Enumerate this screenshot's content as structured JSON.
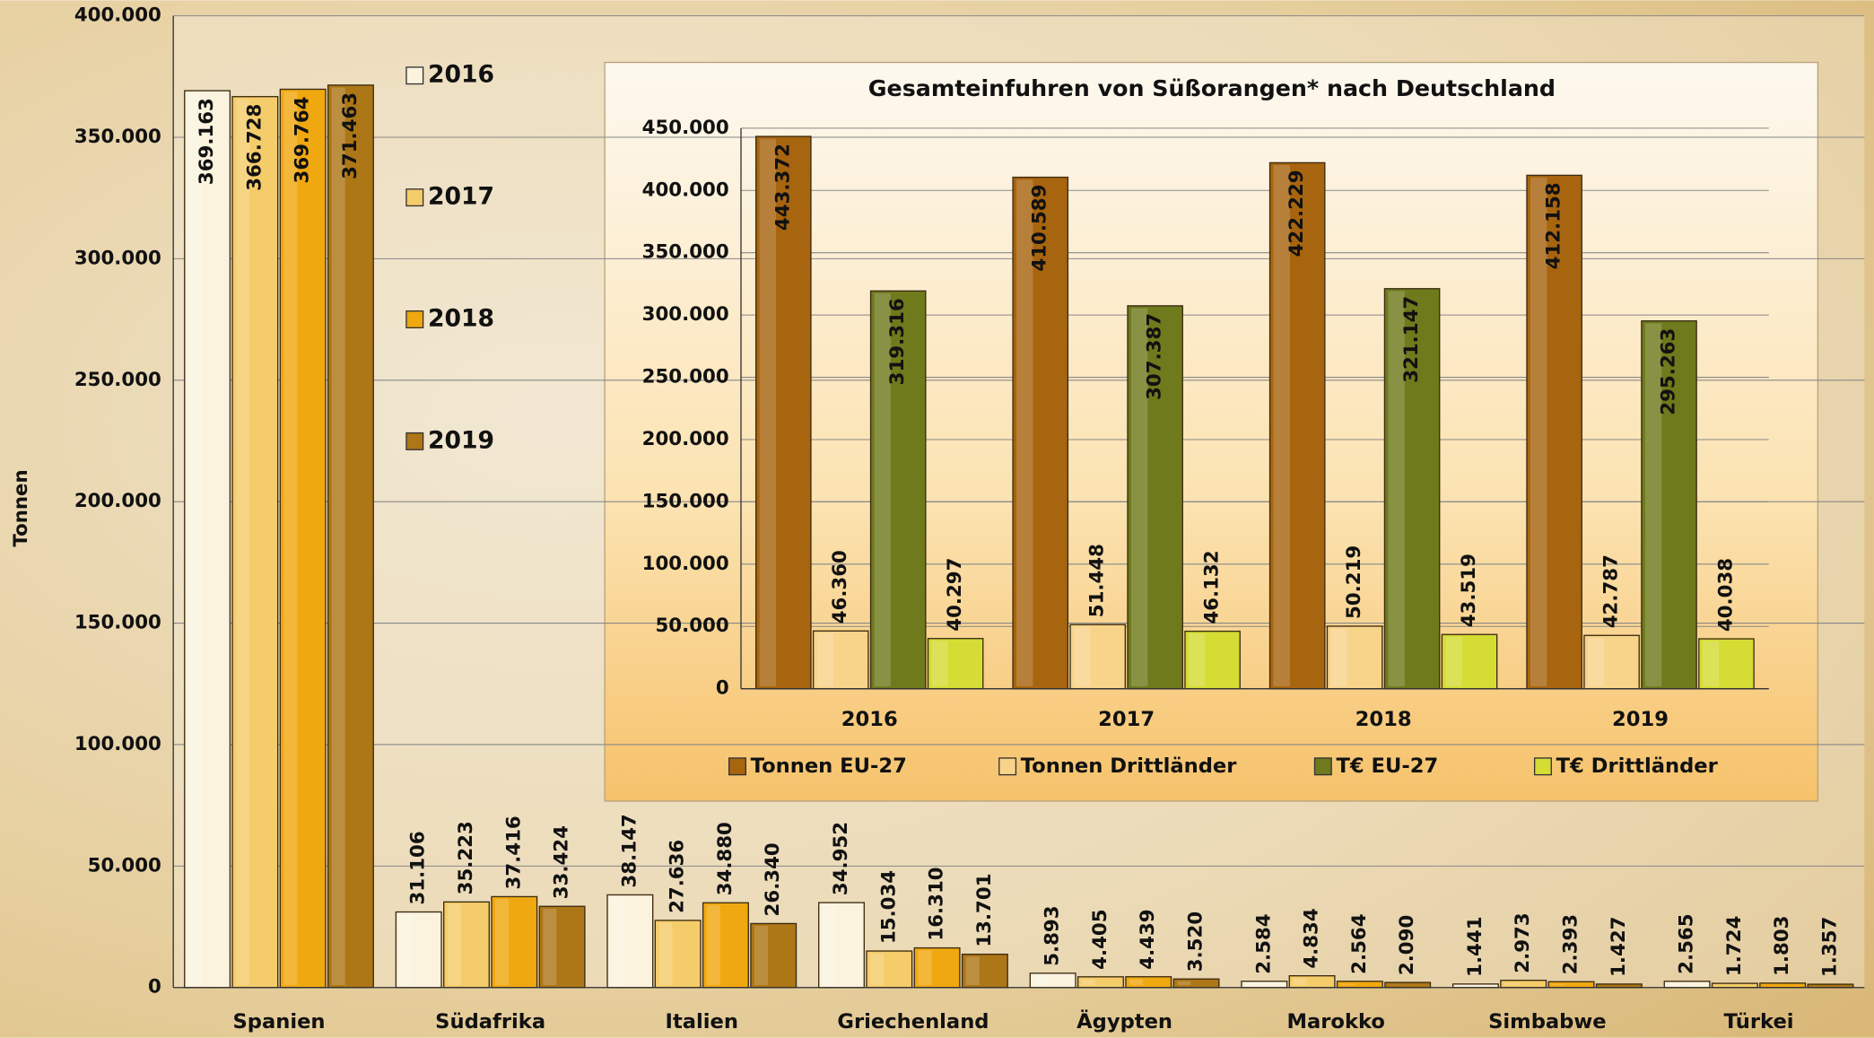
{
  "chart_data": [
    {
      "type": "bar",
      "y_label": "Tonnen",
      "categories": [
        "Spanien",
        "Südafrika",
        "Italien",
        "Griechenland",
        "Ägypten",
        "Marokko",
        "Simbabwe",
        "Türkei"
      ],
      "series": [
        {
          "name": "2016",
          "color": "#fbf3de",
          "values": [
            369163,
            31106,
            38147,
            34952,
            5893,
            2584,
            1441,
            2565
          ],
          "value_labels": [
            "369.163",
            "31.106",
            "38.147",
            "34.952",
            "5.893",
            "2.584",
            "1.441",
            "2.565"
          ]
        },
        {
          "name": "2017",
          "color": "#f5cc6a",
          "values": [
            366728,
            35223,
            27636,
            15034,
            4405,
            4834,
            2973,
            1724
          ],
          "value_labels": [
            "366.728",
            "35.223",
            "27.636",
            "15.034",
            "4.405",
            "4.834",
            "2.973",
            "1.724"
          ]
        },
        {
          "name": "2018",
          "color": "#f0a810",
          "values": [
            369764,
            37416,
            34880,
            16310,
            4439,
            2564,
            2393,
            1803
          ],
          "value_labels": [
            "369.764",
            "37.416",
            "34.880",
            "16.310",
            "4.439",
            "2.564",
            "2.393",
            "1.803"
          ]
        },
        {
          "name": "2019",
          "color": "#ad7616",
          "values": [
            371463,
            33424,
            26340,
            13701,
            3520,
            2090,
            1427,
            1357
          ],
          "value_labels": [
            "371.463",
            "33.424",
            "26.340",
            "13.701",
            "3.520",
            "2.090",
            "1.427",
            "1.357"
          ]
        }
      ],
      "ylim": [
        0,
        400000
      ],
      "yticks": [
        0,
        {
          "value": 50000,
          "label": "50.000"
        },
        {
          "value": 100000,
          "label": "100.000"
        },
        {
          "value": 150000,
          "label": "150.000"
        },
        {
          "value": 200000,
          "label": "200.000"
        },
        {
          "value": 250000,
          "label": "250.000"
        },
        {
          "value": 300000,
          "label": "300.000"
        },
        {
          "value": 350000,
          "label": "350.000"
        },
        {
          "value": 400000,
          "label": "400.000"
        }
      ],
      "grid": true
    },
    {
      "type": "bar",
      "title": "Gesamteinfuhren von Süßorangen* nach Deutschland",
      "categories": [
        "2016",
        "2017",
        "2018",
        "2019"
      ],
      "series": [
        {
          "name": "Tonnen EU-27",
          "color": "#a8650f",
          "values": [
            443372,
            410589,
            422229,
            412158
          ],
          "value_labels": [
            "443.372",
            "410.589",
            "422.229",
            "412.158"
          ]
        },
        {
          "name": "Tonnen Drittländer",
          "color": "#f8d38a",
          "values": [
            46360,
            51448,
            50219,
            42787
          ],
          "value_labels": [
            "46.360",
            "51.448",
            "50.219",
            "42.787"
          ]
        },
        {
          "name": "T€ EU-27",
          "color": "#6e7a1c",
          "values": [
            319316,
            307387,
            321147,
            295263
          ],
          "value_labels": [
            "319.316",
            "307.387",
            "321.147",
            "295.263"
          ]
        },
        {
          "name": "T€ Drittländer",
          "color": "#d5dc34",
          "values": [
            40297,
            46132,
            43519,
            40038
          ],
          "value_labels": [
            "40.297",
            "46.132",
            "43.519",
            "40.038"
          ]
        }
      ],
      "ylim": [
        0,
        450000
      ],
      "yticks": [
        0,
        {
          "value": 50000,
          "label": "50.000"
        },
        {
          "value": 100000,
          "label": "100.000"
        },
        {
          "value": 150000,
          "label": "150.000"
        },
        {
          "value": 200000,
          "label": "200.000"
        },
        {
          "value": 250000,
          "label": "250.000"
        },
        {
          "value": 300000,
          "label": "300.000"
        },
        {
          "value": 350000,
          "label": "350.000"
        },
        {
          "value": 400000,
          "label": "400.000"
        },
        {
          "value": 450000,
          "label": "450.000"
        }
      ],
      "grid": true
    }
  ]
}
